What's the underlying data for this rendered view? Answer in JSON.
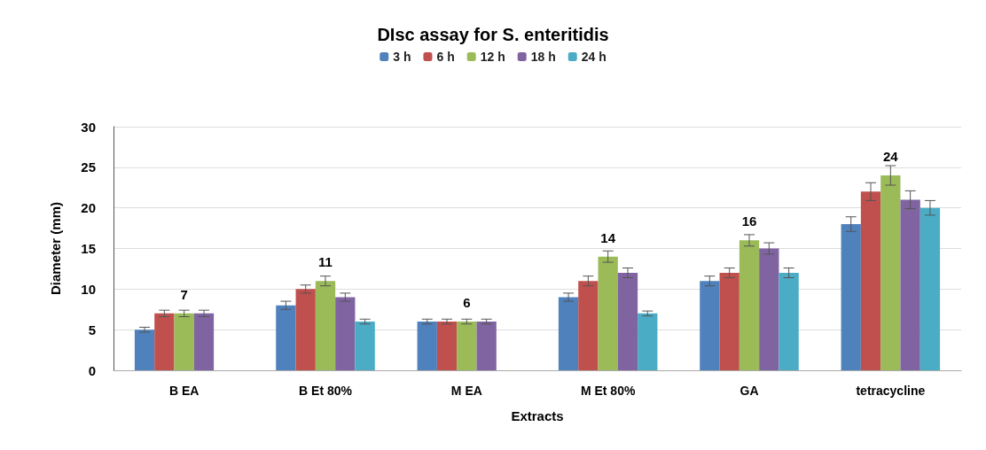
{
  "chart_data": {
    "type": "bar",
    "title": "DIsc assay for S. enteritidis",
    "xlabel": "Extracts",
    "ylabel": "Diameter (mm)",
    "categories": [
      "B EA",
      "B Et 80%",
      "M EA",
      "M Et 80%",
      "GA",
      "tetracycline"
    ],
    "series": [
      {
        "name": "3 h",
        "color": "#4f81bd",
        "values": [
          5,
          8,
          6,
          9,
          11,
          18
        ],
        "errors": [
          0.3,
          0.5,
          0.3,
          0.5,
          0.6,
          0.9
        ]
      },
      {
        "name": "6 h",
        "color": "#c0504d",
        "values": [
          7,
          10,
          6,
          11,
          12,
          22
        ],
        "errors": [
          0.4,
          0.5,
          0.3,
          0.6,
          0.6,
          1.1
        ]
      },
      {
        "name": "12 h",
        "color": "#9bbb59",
        "values": [
          7,
          11,
          6,
          14,
          16,
          24
        ],
        "errors": [
          0.4,
          0.6,
          0.3,
          0.7,
          0.7,
          1.2
        ],
        "value_labels": [
          "7",
          "11",
          "6",
          "14",
          "16",
          "24"
        ]
      },
      {
        "name": "18 h",
        "color": "#8064a2",
        "values": [
          7,
          9,
          6,
          12,
          15,
          21
        ],
        "errors": [
          0.4,
          0.5,
          0.3,
          0.6,
          0.7,
          1.1
        ]
      },
      {
        "name": "24 h",
        "color": "#4bacc6",
        "values": [
          null,
          6,
          null,
          7,
          12,
          20
        ],
        "errors": [
          null,
          0.3,
          null,
          0.3,
          0.6,
          0.9
        ]
      }
    ],
    "ylim": [
      0,
      30
    ],
    "yticks": [
      0,
      5,
      10,
      15,
      20,
      25,
      30
    ],
    "grid": "y",
    "legend": "top"
  }
}
